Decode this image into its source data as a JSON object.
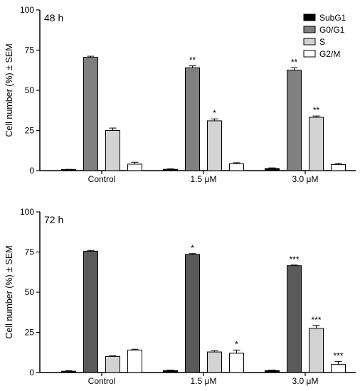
{
  "chart_data": [
    {
      "type": "bar",
      "panel_label": "48 h",
      "ylabel": "Cell number (%) ± SEM",
      "ylim": [
        0,
        100
      ],
      "yticks": [
        "0",
        "25",
        "50",
        "75",
        "100"
      ],
      "categories": [
        "Control",
        "1.5 μM",
        "3.0 μM"
      ],
      "series": [
        {
          "name": "SubG1",
          "values": [
            0.5,
            0.8,
            1.3
          ],
          "errors": [
            0.3,
            0.3,
            0.4
          ],
          "sig": [
            "",
            "",
            ""
          ]
        },
        {
          "name": "G0/G1",
          "values": [
            70.5,
            64.0,
            62.5
          ],
          "errors": [
            0.7,
            1.2,
            1.5
          ],
          "sig": [
            "",
            "**",
            "**"
          ]
        },
        {
          "name": "S",
          "values": [
            25.0,
            31.0,
            33.2
          ],
          "errors": [
            1.5,
            1.2,
            0.8
          ],
          "sig": [
            "",
            "*",
            "**"
          ]
        },
        {
          "name": "G2/M",
          "values": [
            4.0,
            4.3,
            3.8
          ],
          "errors": [
            1.2,
            0.6,
            0.8
          ],
          "sig": [
            "",
            "",
            ""
          ]
        }
      ],
      "legend": "top-right",
      "grid": false
    },
    {
      "type": "bar",
      "panel_label": "72 h",
      "ylabel": "Cell number (%) ± SEM",
      "ylim": [
        0,
        100
      ],
      "yticks": [
        "0",
        "25",
        "50",
        "75",
        "100"
      ],
      "categories": [
        "Control",
        "1.5 μM",
        "3.0 μM"
      ],
      "series": [
        {
          "name": "SubG1",
          "values": [
            0.8,
            1.2,
            1.2
          ],
          "errors": [
            0.3,
            0.3,
            0.3
          ],
          "sig": [
            "",
            "",
            ""
          ]
        },
        {
          "name": "G0/G1",
          "values": [
            75.5,
            73.5,
            66.5
          ],
          "errors": [
            0.5,
            0.5,
            0.4
          ],
          "sig": [
            "",
            "*",
            "***"
          ]
        },
        {
          "name": "S",
          "values": [
            10.0,
            12.8,
            27.5
          ],
          "errors": [
            0.4,
            0.8,
            1.8
          ],
          "sig": [
            "",
            "",
            "***"
          ]
        },
        {
          "name": "G2/M",
          "values": [
            14.0,
            12.0,
            5.0
          ],
          "errors": [
            0.5,
            2.0,
            1.8
          ],
          "sig": [
            "",
            "*",
            "***"
          ]
        }
      ],
      "legend": "none",
      "grid": false
    }
  ],
  "colors": {
    "SubG1": "#000000",
    "G0/G1_48h": "#808080",
    "G0/G1_72h": "#5a5a5a",
    "S": "#d3d3d3",
    "G2/M": "#ffffff",
    "axis": "#000000"
  }
}
